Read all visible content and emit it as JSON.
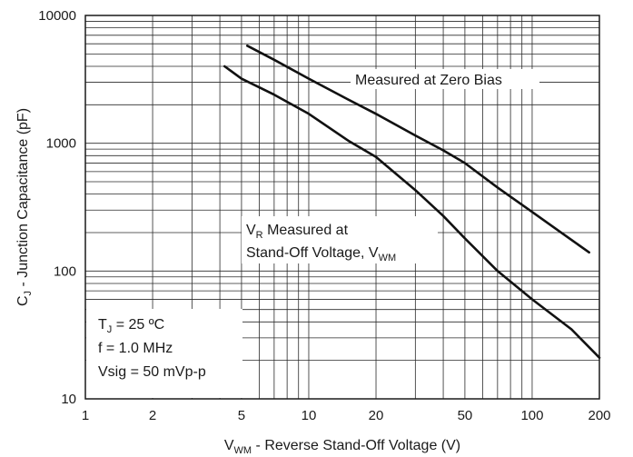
{
  "chart_data": {
    "type": "line",
    "x_scale": "log",
    "y_scale": "log",
    "xlim": [
      1,
      200
    ],
    "ylim": [
      10,
      10000
    ],
    "grid": true,
    "x_ticks": [
      "1",
      "2",
      "5",
      "10",
      "20",
      "50",
      "100",
      "200"
    ],
    "y_ticks": [
      "10",
      "100",
      "1000",
      "10000"
    ],
    "xlabel": {
      "prefix": "V",
      "sub": "WM",
      "suffix": " - Reverse Stand-Off Voltage (V)"
    },
    "ylabel": {
      "prefix": "C",
      "sub": "J",
      "suffix": " - Junction Capacitance (pF)"
    },
    "series": [
      {
        "name": "Measured at Zero Bias",
        "x": [
          5.3,
          7,
          10,
          15,
          20,
          30,
          40,
          50,
          70,
          100,
          150,
          180
        ],
        "y": [
          5800,
          4500,
          3200,
          2200,
          1700,
          1150,
          880,
          700,
          450,
          290,
          175,
          140
        ]
      },
      {
        "name": "VR Measured at Stand-Off Voltage, VWM",
        "x": [
          4.2,
          5,
          7,
          10,
          15,
          20,
          30,
          40,
          50,
          70,
          100,
          150,
          200
        ],
        "y": [
          4000,
          3200,
          2400,
          1700,
          1050,
          780,
          430,
          270,
          180,
          100,
          60,
          35,
          21
        ]
      }
    ],
    "annotations": {
      "zero_bias": "Measured at Zero Bias",
      "standoff_line1": {
        "prefix": "V",
        "sub": "R",
        "suffix": " Measured at"
      },
      "standoff_line2": {
        "prefix": "Stand-Off Voltage, V",
        "sub": "WM"
      },
      "conditions": {
        "tj": {
          "prefix": "T",
          "sub": "J",
          "suffix": " = 25 ºC"
        },
        "freq": "f = 1.0 MHz",
        "vsig": "Vsig = 50 mVp-p"
      }
    }
  }
}
